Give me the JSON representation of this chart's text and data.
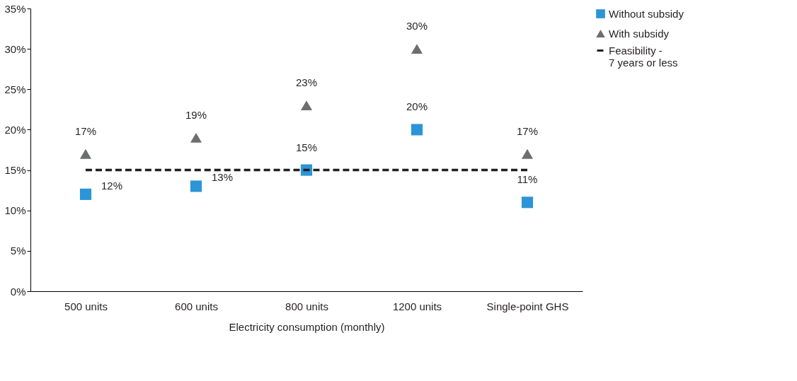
{
  "chart_data": {
    "type": "scatter",
    "xlabel": "Electricity consumption (monthly)",
    "categories": [
      "500 units",
      "600 units",
      "800 units",
      "1200 units",
      "Single-point GHS"
    ],
    "series": [
      {
        "name": "Without subsidy",
        "color": "#2b95d6",
        "marker": "square",
        "values": [
          12,
          13,
          15,
          20,
          11
        ],
        "value_labels": [
          "12%",
          "13%",
          "15%",
          "20%",
          "11%"
        ]
      },
      {
        "name": "With subsidy",
        "color": "#6d6e71",
        "marker": "triangle",
        "values": [
          17,
          19,
          23,
          30,
          17
        ],
        "value_labels": [
          "17%",
          "19%",
          "23%",
          "30%",
          "17%"
        ]
      },
      {
        "name": "Feasibility -\n7 years or less",
        "type": "line",
        "color": "#231f20",
        "line_style": "dashed",
        "values": [
          15,
          15,
          15,
          15,
          15
        ]
      }
    ],
    "ylim": [
      0,
      35
    ],
    "yticks": [
      {
        "value": 0,
        "label": "0%"
      },
      {
        "value": 5,
        "label": "5%"
      },
      {
        "value": 10,
        "label": "10%"
      },
      {
        "value": 15,
        "label": "15%"
      },
      {
        "value": 20,
        "label": "20%"
      },
      {
        "value": 25,
        "label": "25%"
      },
      {
        "value": 30,
        "label": "30%"
      },
      {
        "value": 35,
        "label": "35%"
      }
    ],
    "grid": false,
    "legend": "right"
  }
}
